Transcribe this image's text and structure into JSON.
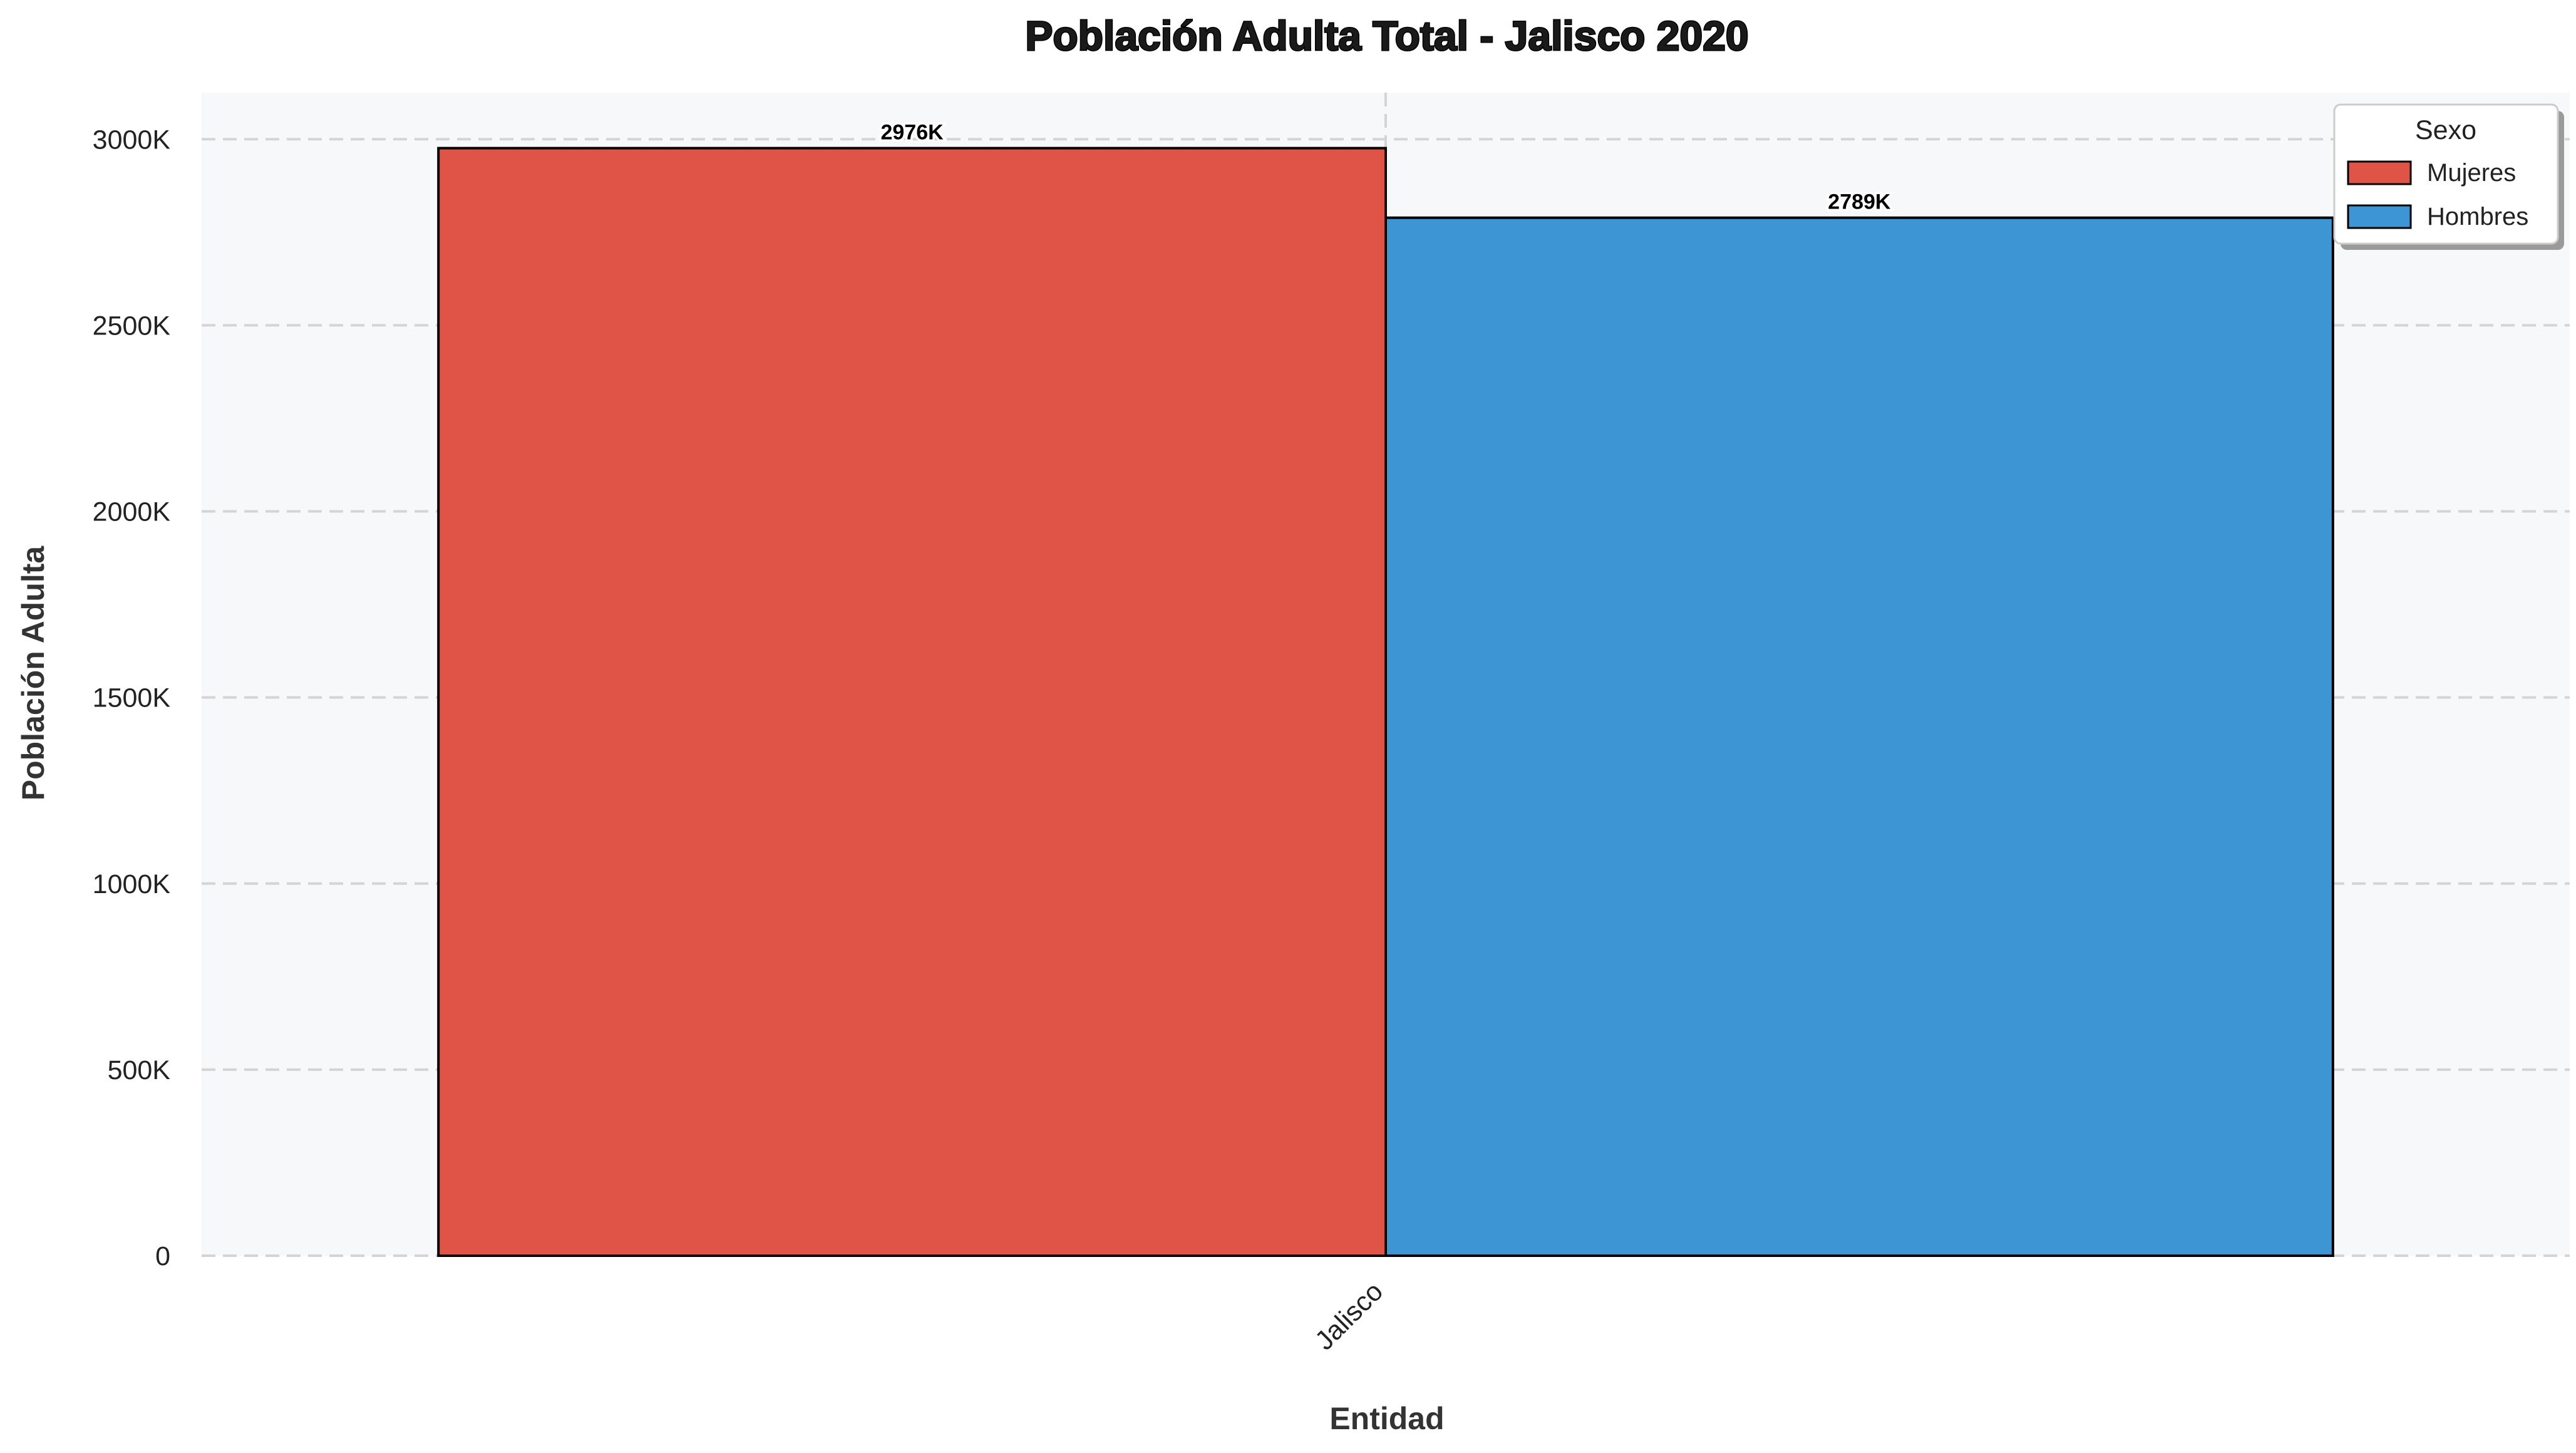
{
  "chart_data": {
    "type": "bar",
    "title": "Población Adulta Total - Jalisco 2020",
    "xlabel": "Entidad",
    "ylabel": "Población Adulta",
    "categories": [
      "Jalisco"
    ],
    "series": [
      {
        "name": "Mujeres",
        "values": [
          2976000
        ],
        "label": "2976K",
        "color": "#e05447"
      },
      {
        "name": "Hombres",
        "values": [
          2789000
        ],
        "label": "2789K",
        "color": "#3e95d4"
      }
    ],
    "ylim": [
      0,
      3125000
    ],
    "yticks": [
      0,
      500000,
      1000000,
      1500000,
      2000000,
      2500000,
      3000000
    ],
    "ytick_labels": [
      "0",
      "500K",
      "1000K",
      "1500K",
      "2000K",
      "2500K",
      "3000K"
    ],
    "grid": true,
    "legend": {
      "title": "Sexo",
      "placement": "top-right"
    },
    "colors": {
      "plot_background": "#f7f8fa",
      "grid": "#d4d4d4",
      "bar_edge": "#000000"
    }
  }
}
